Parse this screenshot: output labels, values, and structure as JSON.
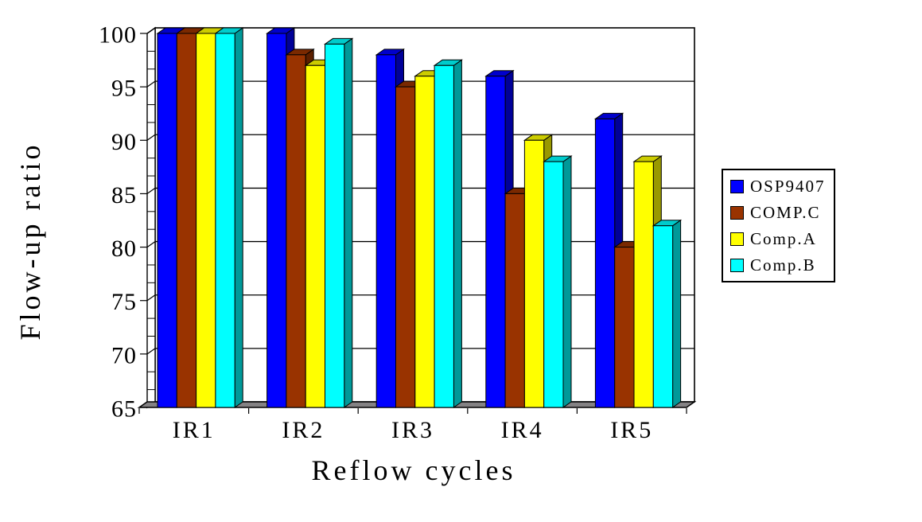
{
  "chart_data": {
    "type": "bar",
    "style": "3d-clustered-bars",
    "title": "",
    "xlabel": "Reflow cycles",
    "ylabel": "Flow-up ratio",
    "categories": [
      "IR1",
      "IR2",
      "IR3",
      "IR4",
      "IR5"
    ],
    "series": [
      {
        "name": "OSP9407",
        "color": "#0000FF",
        "values": [
          100,
          100,
          98,
          96,
          92
        ]
      },
      {
        "name": "COMP.C",
        "color": "#993300",
        "values": [
          100,
          98,
          95,
          85,
          80
        ]
      },
      {
        "name": "Comp.A",
        "color": "#FFFF00",
        "values": [
          100,
          97,
          96,
          90,
          88
        ]
      },
      {
        "name": "Comp.B",
        "color": "#00FFFF",
        "values": [
          100,
          99,
          97,
          88,
          82
        ]
      }
    ],
    "ylim": [
      65,
      100
    ],
    "yticks": [
      65,
      70,
      75,
      80,
      85,
      90,
      95,
      100
    ],
    "grid": true,
    "gridline_color": "#000000",
    "wall_color": "#FFFFFF",
    "floor_color": "#848284",
    "legend_position": "right",
    "legend_border_color": "#000000"
  }
}
